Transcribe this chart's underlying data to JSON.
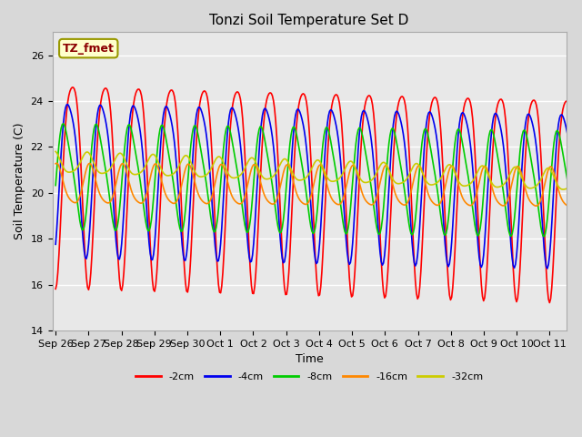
{
  "title": "Tonzi Soil Temperature Set D",
  "xlabel": "Time",
  "ylabel": "Soil Temperature (C)",
  "ylim": [
    14,
    27
  ],
  "yticks": [
    14,
    16,
    18,
    20,
    22,
    24,
    26
  ],
  "x_labels": [
    "Sep 26",
    "Sep 27",
    "Sep 28",
    "Sep 29",
    "Sep 30",
    "Oct 1",
    "Oct 2",
    "Oct 3",
    "Oct 4",
    "Oct 5",
    "Oct 6",
    "Oct 7",
    "Oct 8",
    "Oct 9",
    "Oct 10",
    "Oct 11"
  ],
  "series_labels": [
    "-2cm",
    "-4cm",
    "-8cm",
    "-16cm",
    "-32cm"
  ],
  "series_colors": [
    "#ff0000",
    "#0000ee",
    "#00cc00",
    "#ff8800",
    "#cccc00"
  ],
  "line_widths": [
    1.2,
    1.2,
    1.2,
    1.2,
    1.2
  ],
  "annotation_label": "TZ_fmet",
  "fig_bg_color": "#d8d8d8",
  "plot_bg_color": "#e8e8e8",
  "title_fontsize": 11,
  "axis_label_fontsize": 9,
  "tick_fontsize": 8,
  "legend_fontsize": 8,
  "n_points": 480,
  "amp_2cm": 4.4,
  "amp_4cm": 3.3,
  "amp_8cm": 2.2,
  "amp_16cm": 0.85,
  "amp_32cm": 0.45,
  "mean_2cm": 21.0,
  "mean_4cm": 21.0,
  "mean_8cm": 20.8,
  "mean_16cm": 20.3,
  "mean_32cm": 21.3,
  "phase_2cm": -1.57,
  "phase_4cm": -1.0,
  "phase_8cm": -0.2,
  "phase_16cm": 1.3,
  "phase_32cm": 1.9,
  "trend_mean_2cm": -0.04,
  "trend_mean_4cm": -0.03,
  "trend_mean_8cm": -0.02,
  "trend_mean_16cm": -0.01,
  "trend_mean_32cm": -0.05,
  "trend_amp_2cm": 0.0,
  "trend_amp_4cm": 0.0,
  "trend_amp_8cm": 0.0,
  "trend_amp_16cm": 0.0,
  "trend_amp_32cm": 0.0
}
